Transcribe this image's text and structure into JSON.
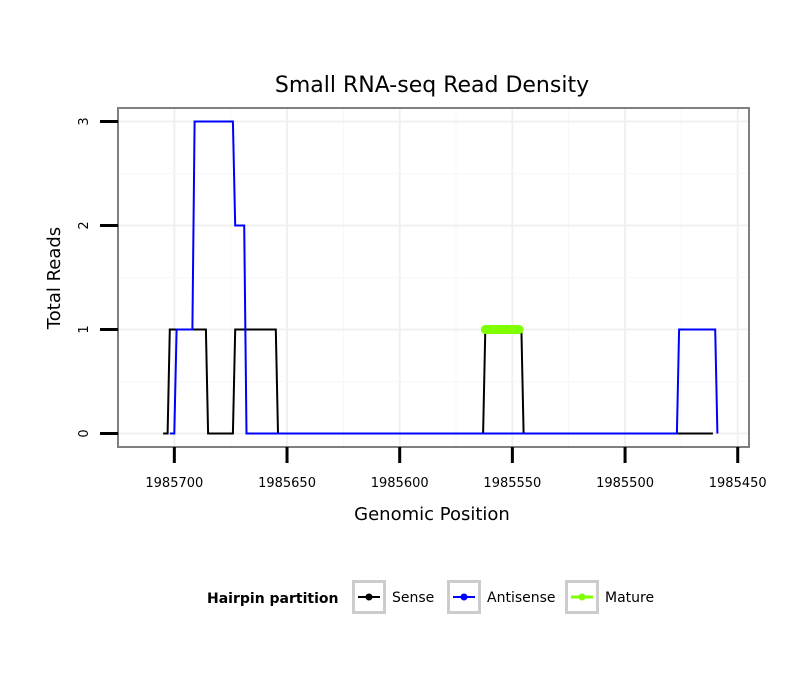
{
  "chart_data": {
    "type": "line",
    "title": "Small RNA-seq Read Density",
    "xlabel": "Genomic Position",
    "ylabel": "Total Reads",
    "x_reversed": true,
    "xlim": [
      1985725,
      1985445
    ],
    "ylim": [
      -0.13,
      3.13
    ],
    "x_ticks": [
      1985700,
      1985650,
      1985600,
      1985550,
      1985500,
      1985450
    ],
    "x_tick_labels": [
      "1985700",
      "1985650",
      "1985600",
      "1985550",
      "1985500",
      "1985450"
    ],
    "y_ticks": [
      0,
      1,
      2,
      3
    ],
    "y_tick_labels": [
      "0",
      "1",
      "2",
      "3"
    ],
    "grid": true,
    "legend": {
      "title": "Hairpin partition",
      "position": "bottom",
      "entries": [
        "Sense",
        "Antisense",
        "Mature"
      ]
    },
    "series": [
      {
        "name": "Sense",
        "color": "#000000",
        "style": "line",
        "x": [
          1985705,
          1985703,
          1985702,
          1985686,
          1985685,
          1985674,
          1985673,
          1985671,
          1985670,
          1985655,
          1985654,
          1985563,
          1985562,
          1985546,
          1985545,
          1985461
        ],
        "y": [
          0,
          0,
          1,
          1,
          0,
          0,
          1,
          1,
          1,
          1,
          0,
          0,
          1,
          1,
          0,
          0
        ]
      },
      {
        "name": "Antisense",
        "color": "#0000ff",
        "style": "line",
        "x": [
          1985702,
          1985700,
          1985699,
          1985697,
          1985696,
          1985692,
          1985691,
          1985674,
          1985673,
          1985669,
          1985668,
          1985654,
          1985653,
          1985563,
          1985562,
          1985546,
          1985545,
          1985477,
          1985476,
          1985460,
          1985459
        ],
        "y": [
          0,
          0,
          1,
          1,
          1,
          1,
          3,
          3,
          2,
          2,
          0,
          0,
          0,
          0,
          0,
          0,
          0,
          0,
          1,
          1,
          0
        ]
      },
      {
        "name": "Mature",
        "color": "#7fff00",
        "style": "thick",
        "x": [
          1985562,
          1985547
        ],
        "y": [
          1,
          1
        ]
      }
    ]
  }
}
